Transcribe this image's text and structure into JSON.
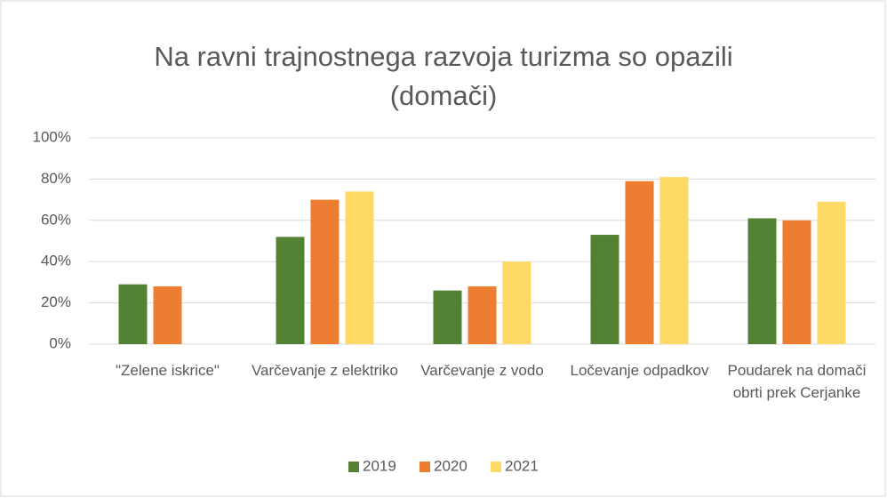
{
  "chart_data": {
    "type": "bar",
    "title": "Na ravni trajnostnega razvoja turizma so opazili (domači)",
    "categories": [
      "\"Zelene iskrice\"",
      "Varčevanje z elektriko",
      "Varčevanje z vodo",
      "Ločevanje odpadkov",
      "Poudarek na domači obrti prek Cerjanke"
    ],
    "series": [
      {
        "name": "2019",
        "color": "#548235",
        "values": [
          29,
          52,
          26,
          53,
          61
        ]
      },
      {
        "name": "2020",
        "color": "#ed7d31",
        "values": [
          28,
          70,
          28,
          79,
          60
        ]
      },
      {
        "name": "2021",
        "color": "#ffd966",
        "values": [
          null,
          74,
          40,
          81,
          69
        ]
      }
    ],
    "ylim": [
      0,
      100
    ],
    "yticks": [
      {
        "value": 0,
        "label": "0%"
      },
      {
        "value": 20,
        "label": "20%"
      },
      {
        "value": 40,
        "label": "40%"
      },
      {
        "value": 60,
        "label": "60%"
      },
      {
        "value": 80,
        "label": "80%"
      },
      {
        "value": 100,
        "label": "100%"
      }
    ],
    "grid": true,
    "legend": "bottom"
  }
}
